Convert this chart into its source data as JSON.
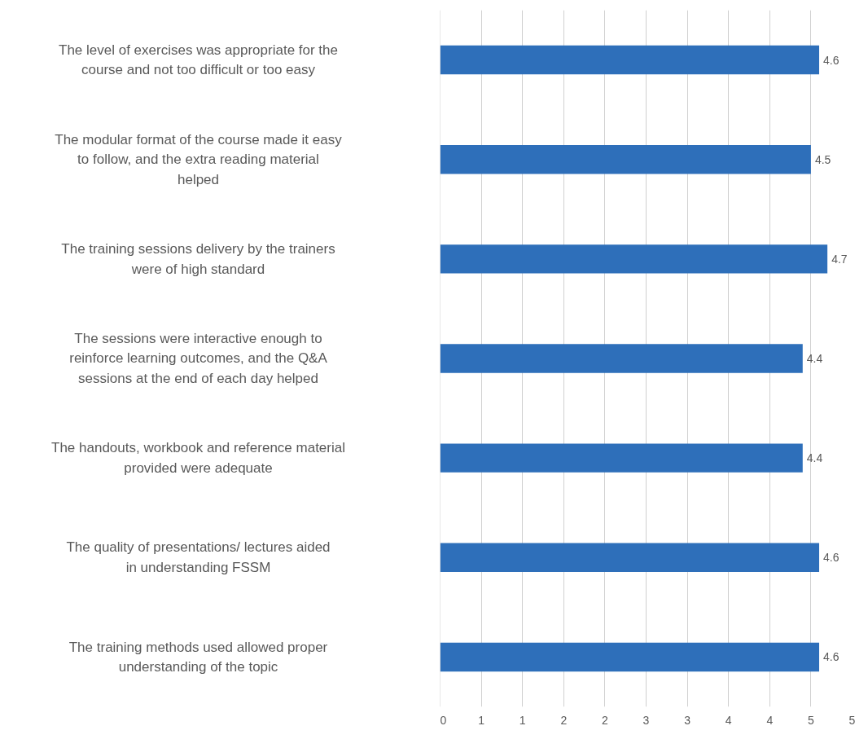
{
  "chart_data": {
    "type": "bar",
    "orientation": "horizontal",
    "categories": [
      "The level of exercises was appropriate for the course and not too difficult or too easy",
      "The modular format of the course made it easy to follow, and the extra reading material helped",
      "The training sessions delivery by the trainers were of high standard",
      "The sessions were interactive enough to reinforce learning outcomes, and the Q&A sessions at the end of each day helped",
      "The handouts, workbook and reference material provided were adequate",
      "The quality of presentations/ lectures aided in understanding FSSM",
      "The training methods used allowed proper understanding of the topic"
    ],
    "values": [
      4.6,
      4.5,
      4.7,
      4.4,
      4.4,
      4.6,
      4.6
    ],
    "color": "#2e6fba",
    "data_labels": true,
    "grid": "x",
    "xlim": [
      0,
      5
    ],
    "xticks": [
      0,
      {
        "value": 0.5,
        "label": "1"
      },
      1,
      {
        "value": 1.5,
        "label": "2"
      },
      2,
      {
        "value": 2.5,
        "label": "3"
      },
      3,
      {
        "value": 3.5,
        "label": "4"
      },
      4,
      {
        "value": 4.5,
        "label": "5"
      },
      5
    ]
  }
}
